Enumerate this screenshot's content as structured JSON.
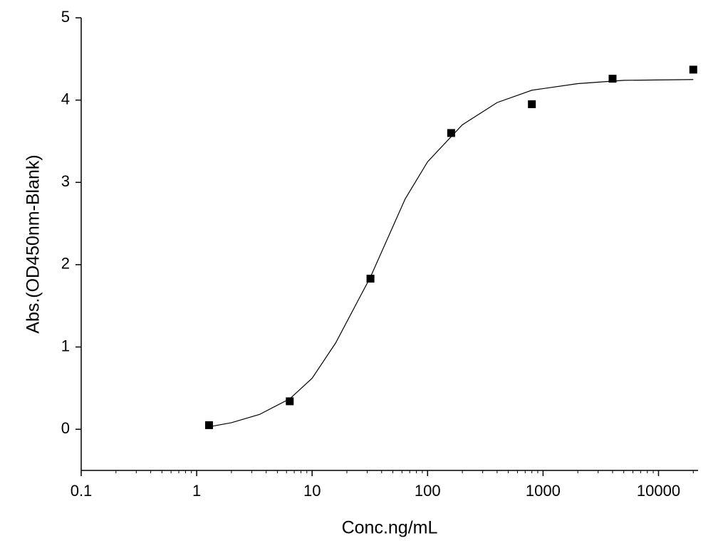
{
  "chart_data": {
    "type": "scatter",
    "xlabel": "Conc.ng/mL",
    "ylabel": "Abs.(OD450nm-Blank)",
    "xscale": "log",
    "xlim": [
      0.1,
      22000
    ],
    "ylim": [
      -0.5,
      5
    ],
    "xticks": [
      0.1,
      1,
      10,
      100,
      1000,
      10000
    ],
    "xminorticks": [
      0.2,
      0.3,
      0.4,
      0.5,
      0.6,
      0.7,
      0.8,
      0.9,
      2,
      3,
      4,
      5,
      6,
      7,
      8,
      9,
      20,
      30,
      40,
      50,
      60,
      70,
      80,
      90,
      200,
      300,
      400,
      500,
      600,
      700,
      800,
      900,
      2000,
      3000,
      4000,
      5000,
      6000,
      7000,
      8000,
      9000,
      20000
    ],
    "yticks": [
      0,
      1,
      2,
      3,
      4,
      5
    ],
    "series": [
      {
        "type": "scatter",
        "color": "#000000",
        "x": [
          1.28,
          6.4,
          32,
          160,
          800,
          4000,
          20000
        ],
        "values": [
          0.05,
          0.34,
          1.83,
          3.6,
          3.95,
          4.26,
          4.37
        ]
      },
      {
        "type": "line",
        "color": "#000000",
        "x": [
          1.28,
          2,
          3.5,
          6.4,
          10,
          16,
          32,
          64,
          100,
          200,
          400,
          800,
          2000,
          5000,
          20000
        ],
        "values": [
          0.03,
          0.08,
          0.18,
          0.37,
          0.62,
          1.05,
          1.85,
          2.8,
          3.25,
          3.7,
          3.97,
          4.12,
          4.2,
          4.24,
          4.25
        ]
      }
    ]
  }
}
